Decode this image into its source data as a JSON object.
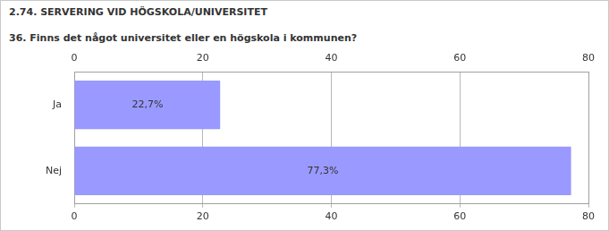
{
  "chart_data": {
    "type": "bar",
    "title": "2.74. SERVERING VID HÖGSKOLA/UNIVERSITET",
    "subtitle": "36. Finns det något universitet eller en högskola i kommunen?",
    "categories": [
      "Ja",
      "Nej"
    ],
    "values": [
      22.7,
      77.3
    ],
    "value_labels": [
      "22,7%",
      "77,3%"
    ],
    "color": "#9999ff",
    "orientation": "horizontal",
    "data_labels": true,
    "xlim": [
      0,
      80
    ],
    "xticks": [
      0,
      20,
      40,
      60,
      80
    ],
    "grid": true
  }
}
